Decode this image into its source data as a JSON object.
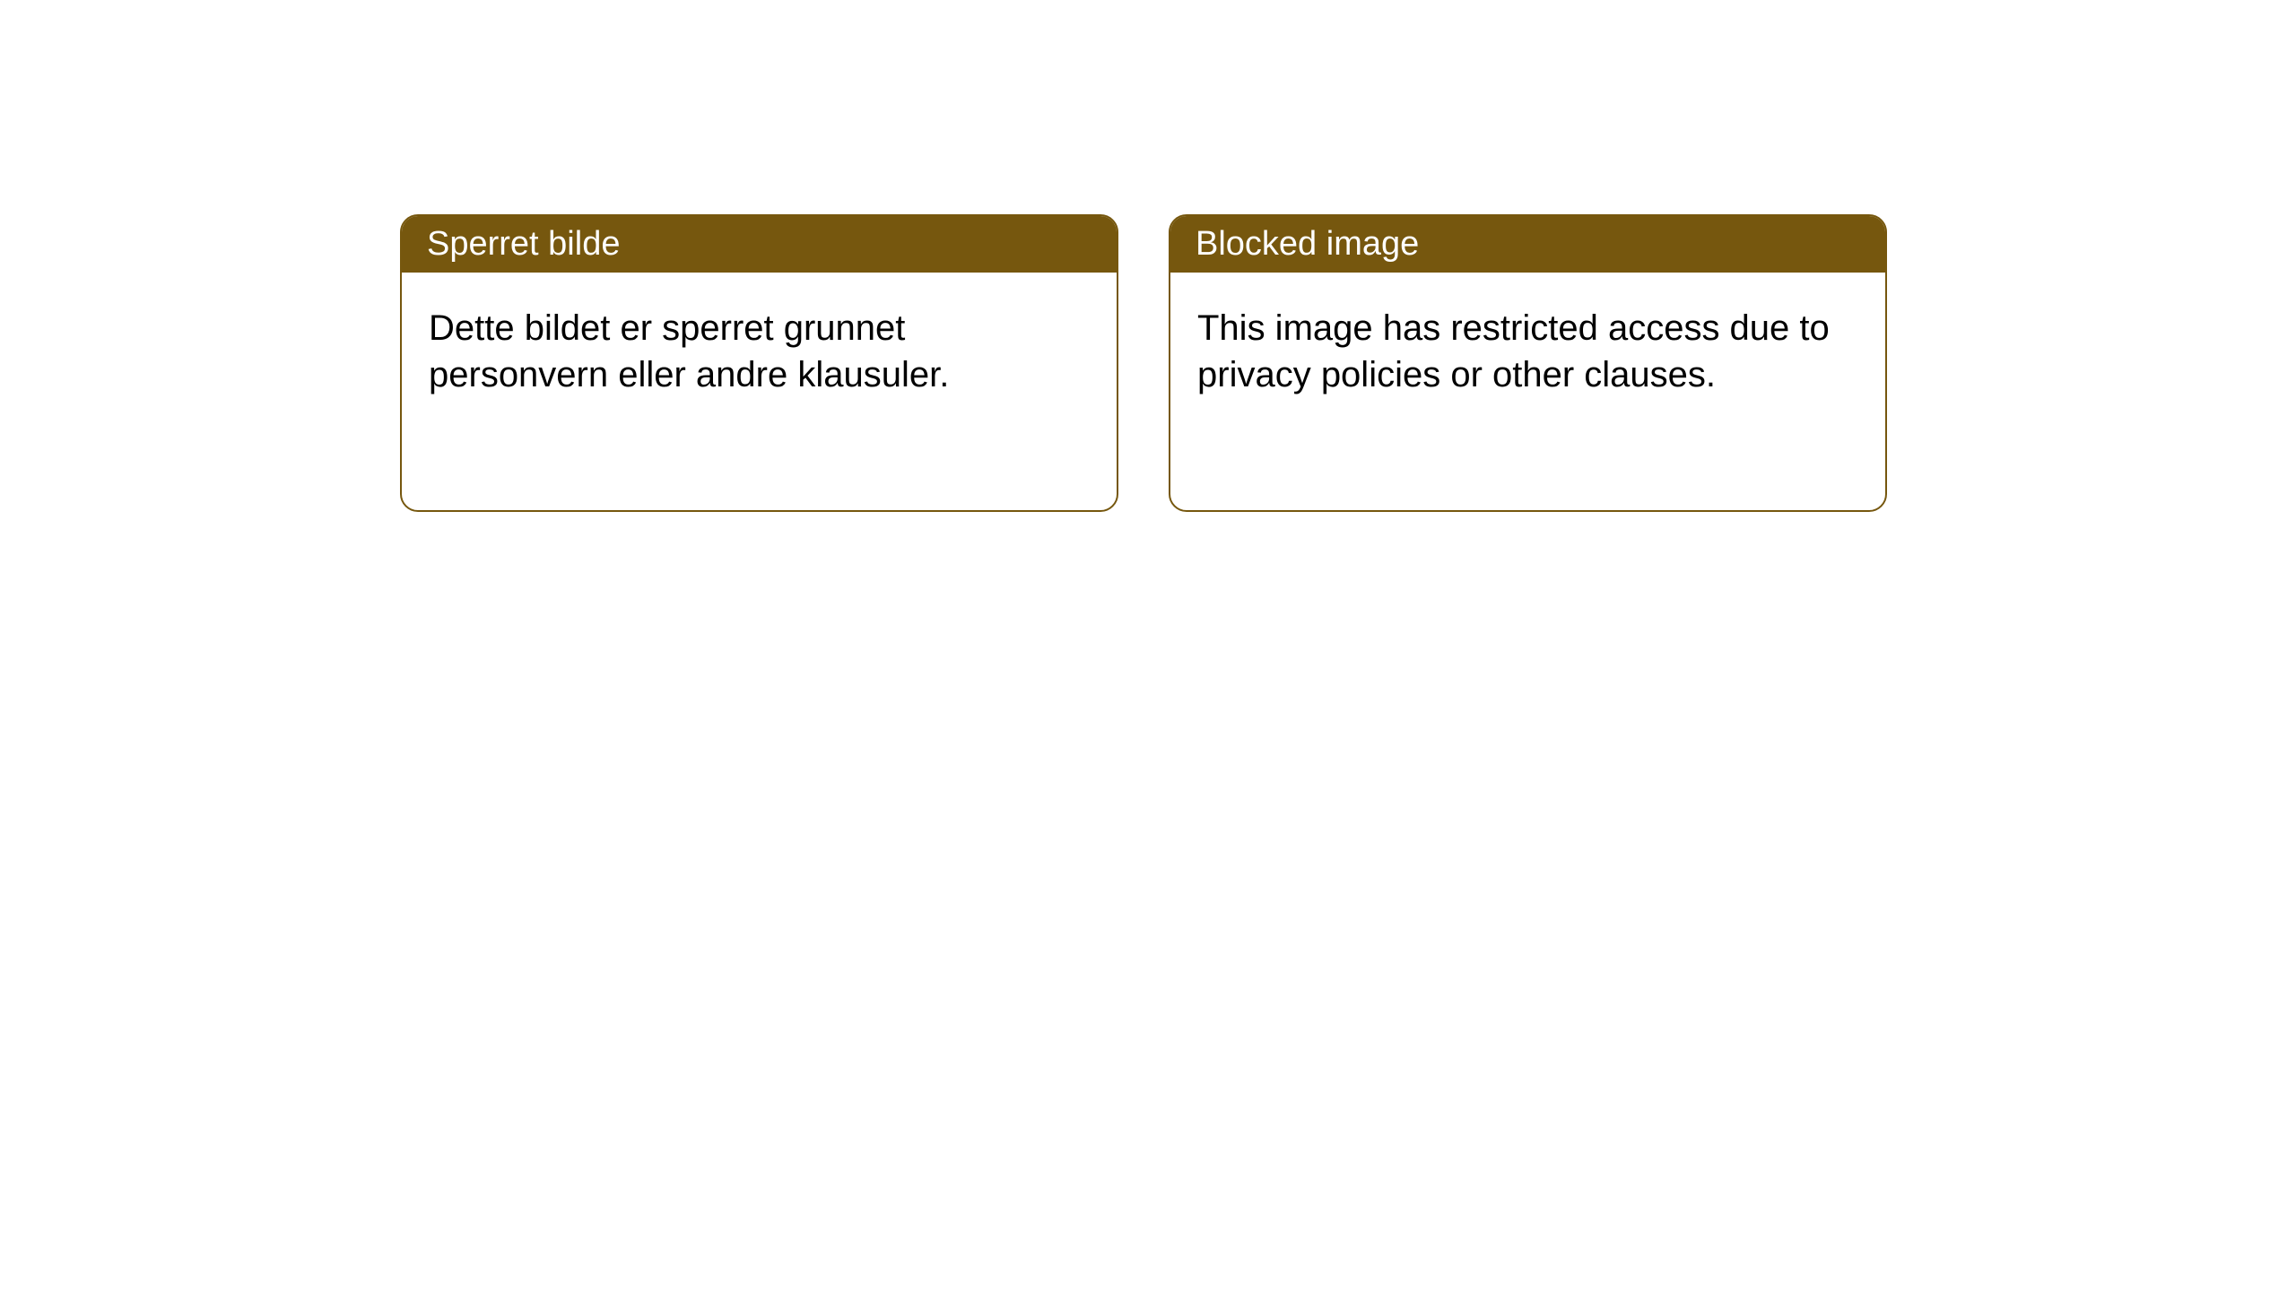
{
  "layout": {
    "background_color": "#ffffff",
    "card_border_color": "#76570e",
    "card_border_width": 2,
    "card_border_radius": 20,
    "header_background_color": "#76570e",
    "header_text_color": "#ffffff",
    "body_text_color": "#000000",
    "header_font_size": 38,
    "body_font_size": 40
  },
  "cards": {
    "left": {
      "title": "Sperret bilde",
      "body": "Dette bildet er sperret grunnet personvern eller andre klausuler."
    },
    "right": {
      "title": "Blocked image",
      "body": "This image has restricted access due to privacy policies or other clauses."
    }
  }
}
